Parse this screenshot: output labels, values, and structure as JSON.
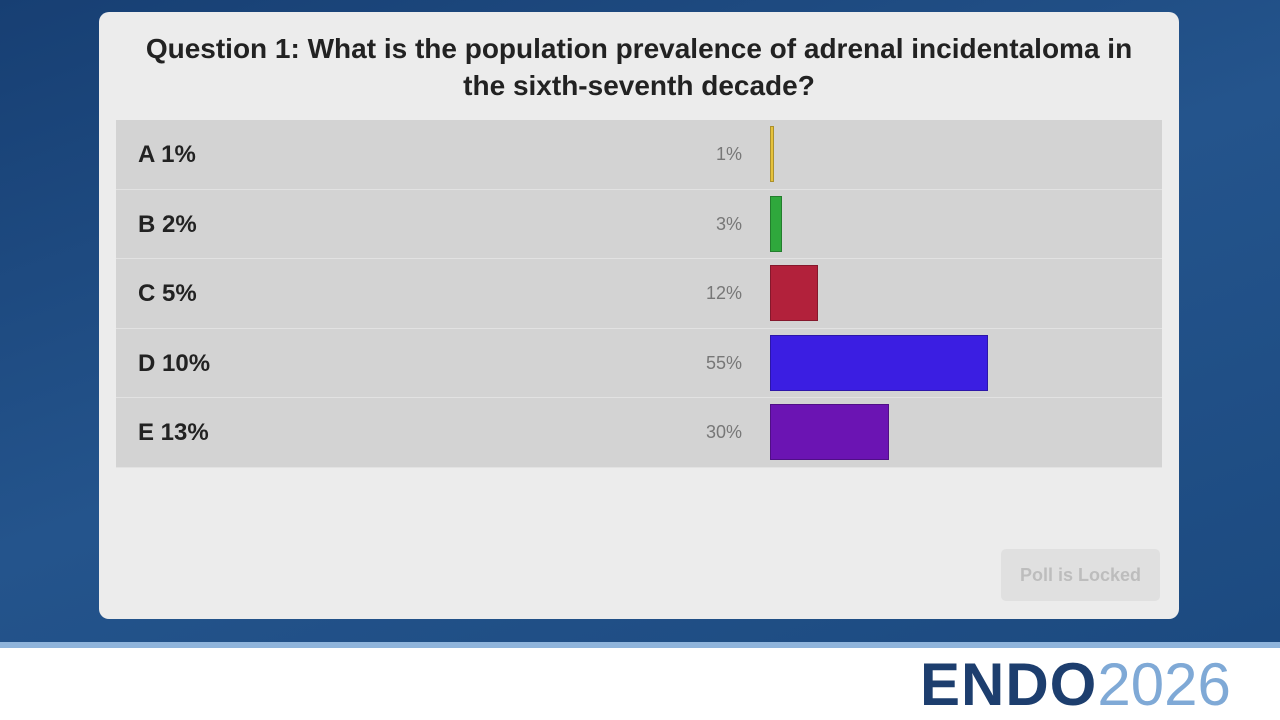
{
  "chart_data": {
    "type": "bar",
    "title": "Question 1: What is the population prevalence of adrenal incidentaloma in the sixth-seventh decade?",
    "categories": [
      "A 1%",
      "B 2%",
      "C 5%",
      "D 10%",
      "E 13%"
    ],
    "values": [
      1,
      3,
      12,
      55,
      30
    ],
    "value_labels": [
      "1%",
      "3%",
      "12%",
      "55%",
      "30%"
    ],
    "colors": [
      "#e6c23c",
      "#2fa83c",
      "#b2213b",
      "#3b1ee2",
      "#6b14b3"
    ]
  },
  "button": "Poll is Locked",
  "footer": {
    "logo": "ENDO",
    "year": "2026"
  }
}
